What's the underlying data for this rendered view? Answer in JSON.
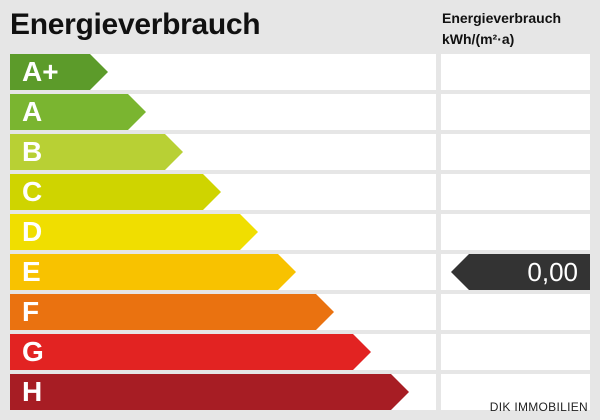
{
  "title": "Energieverbrauch",
  "unit_header": {
    "line1": "Energieverbrauch",
    "line2": "kWh/(m²·a)"
  },
  "classes": [
    {
      "label": "A+",
      "color": "#5c9b2a"
    },
    {
      "label": "A",
      "color": "#7ab530"
    },
    {
      "label": "B",
      "color": "#b8d034"
    },
    {
      "label": "C",
      "color": "#cfd400"
    },
    {
      "label": "D",
      "color": "#f0de00"
    },
    {
      "label": "E",
      "color": "#f8c200"
    },
    {
      "label": "F",
      "color": "#ea7210"
    },
    {
      "label": "G",
      "color": "#e22322"
    },
    {
      "label": "H",
      "color": "#a71d24"
    }
  ],
  "value": {
    "text": "0,00",
    "class_label": "E",
    "color": "#333333"
  },
  "footer": "DIK IMMOBILIEN"
}
